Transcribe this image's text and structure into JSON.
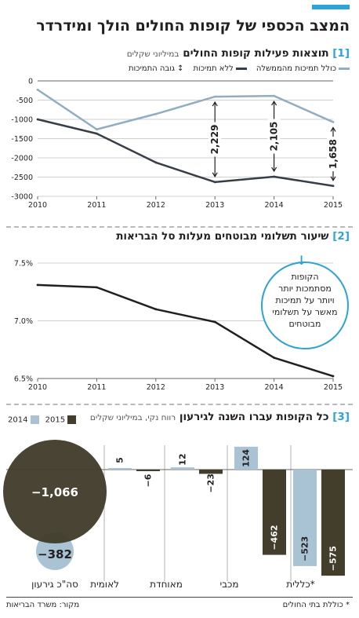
{
  "header": {
    "title": "המצב הכספי של קופות החולים הולך ומידרדר"
  },
  "sections": [
    {
      "number": "[1]",
      "title": "תוצאות פעילות קופות החולים",
      "subtitle": "במיליוני שקלים",
      "legend": [
        "כולל תמיכות מהממשלה",
        "ללא תמיכות",
        "גובה התמיכות"
      ]
    },
    {
      "number": "[2]",
      "title": "שיעור תשלומי מבוטחים מעלות סל הבריאות"
    },
    {
      "number": "[3]",
      "title": "כל הקופות עברו השנה לגירעון",
      "subtitle": "רווח נקי, במיליוני שקלים",
      "legend": [
        "2014",
        "2015"
      ]
    }
  ],
  "annotation2": {
    "lines": [
      "הקופות",
      "מסתמכות יותר",
      "ויותר על תמיכות",
      "מאשר על תשלומי",
      "מבוטחים"
    ]
  },
  "footer": {
    "note": "* כוללת בתי החולים",
    "source": "מקור: משרד הבריאות"
  },
  "colors": {
    "accent": "#2ea3d5",
    "light_series": "#91adc1",
    "dark_series": "#383e45",
    "dark_2015": "#433e2c",
    "light_2014": "#a9c2d4",
    "line2": "#231f20"
  },
  "chart_data": [
    {
      "type": "line",
      "x": [
        2010,
        2011,
        2012,
        2013,
        2014,
        2015
      ],
      "series": [
        {
          "name": "כולל תמיכות מהממשלה",
          "values": [
            -230,
            -1260,
            -860,
            -410,
            -390,
            -1070
          ]
        },
        {
          "name": "ללא תמיכות",
          "values": [
            -1000,
            -1370,
            -2120,
            -2630,
            -2490,
            -2730
          ]
        }
      ],
      "support_gaps": [
        {
          "x": 2013,
          "label": "2,229"
        },
        {
          "x": 2014,
          "label": "2,105"
        },
        {
          "x": 2015,
          "label": "1,658"
        }
      ],
      "yticks": [
        "0",
        "-500",
        "-1000",
        "-1500",
        "-2000",
        "-2500",
        "-3000"
      ],
      "ylim": [
        -3000,
        0
      ],
      "grid": true
    },
    {
      "type": "line",
      "x": [
        2010,
        2011,
        2012,
        2013,
        2014,
        2015
      ],
      "series": [
        {
          "values": [
            7.31,
            7.29,
            7.1,
            6.99,
            6.68,
            6.52
          ]
        }
      ],
      "yticks": [
        "6.5%",
        "7.0%",
        "7.5%"
      ],
      "ylim": [
        6.5,
        7.5
      ],
      "grid": true
    },
    {
      "type": "bar",
      "categories": [
        "כללית*",
        "מכבי",
        "מאוחדת",
        "לאומית",
        "סה\"כ גירעון"
      ],
      "series": [
        {
          "name": "2014",
          "values": [
            -523,
            124,
            12,
            5,
            -382
          ],
          "labels": [
            "−523",
            "124",
            "12",
            "5",
            "−382"
          ]
        },
        {
          "name": "2015",
          "values": [
            -575,
            -462,
            -23,
            -6,
            -1066
          ],
          "labels": [
            "−575",
            "−462",
            "−23",
            "−6",
            "−1,066"
          ]
        }
      ]
    }
  ]
}
